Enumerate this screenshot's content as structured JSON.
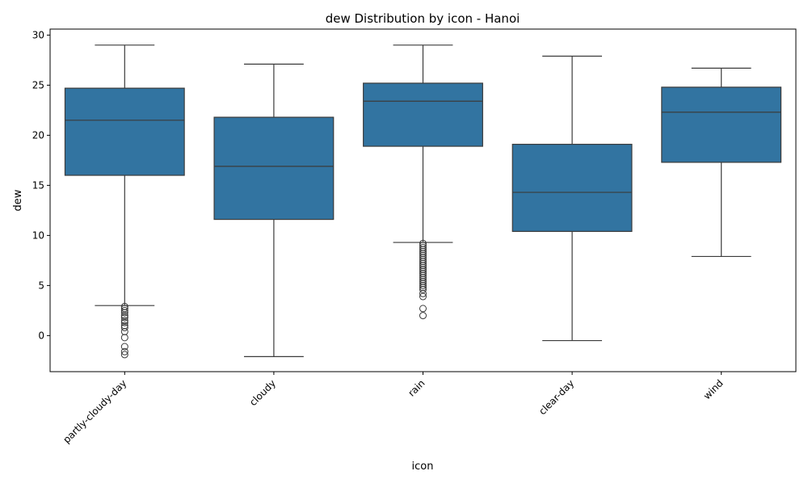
{
  "chart_data": {
    "type": "box",
    "title": "dew Distribution by icon - Hanoi",
    "xlabel": "icon",
    "ylabel": "dew",
    "ylim": [
      -3.6,
      30.6
    ],
    "yticks": [
      0,
      5,
      10,
      15,
      20,
      25,
      30
    ],
    "categories": [
      "partly-cloudy-day",
      "cloudy",
      "rain",
      "clear-day",
      "wind"
    ],
    "box_color": "#3274a1",
    "grid": false,
    "legend": "none",
    "boxes": [
      {
        "category": "partly-cloudy-day",
        "whisker_low": 3.0,
        "q1": 16.0,
        "median": 21.5,
        "q3": 24.7,
        "whisker_high": 29.0,
        "outliers": [
          2.9,
          2.7,
          2.5,
          2.3,
          2.0,
          1.8,
          1.5,
          1.3,
          1.0,
          0.8,
          0.4,
          -0.2,
          -1.1,
          -1.6,
          -1.9
        ]
      },
      {
        "category": "cloudy",
        "whisker_low": -2.1,
        "q1": 11.6,
        "median": 16.9,
        "q3": 21.8,
        "whisker_high": 27.1,
        "outliers": []
      },
      {
        "category": "rain",
        "whisker_low": 9.3,
        "q1": 18.9,
        "median": 23.4,
        "q3": 25.2,
        "whisker_high": 29.0,
        "outliers": [
          9.2,
          9.0,
          8.8,
          8.6,
          8.4,
          8.2,
          8.0,
          7.8,
          7.6,
          7.4,
          7.2,
          7.0,
          6.8,
          6.6,
          6.4,
          6.2,
          6.0,
          5.8,
          5.6,
          5.4,
          5.2,
          5.0,
          4.8,
          4.6,
          4.2,
          3.9,
          2.7,
          2.0
        ]
      },
      {
        "category": "clear-day",
        "whisker_low": -0.5,
        "q1": 10.4,
        "median": 14.3,
        "q3": 19.1,
        "whisker_high": 27.9,
        "outliers": []
      },
      {
        "category": "wind",
        "whisker_low": 7.9,
        "q1": 17.3,
        "median": 22.3,
        "q3": 24.8,
        "whisker_high": 26.7,
        "outliers": []
      }
    ]
  }
}
